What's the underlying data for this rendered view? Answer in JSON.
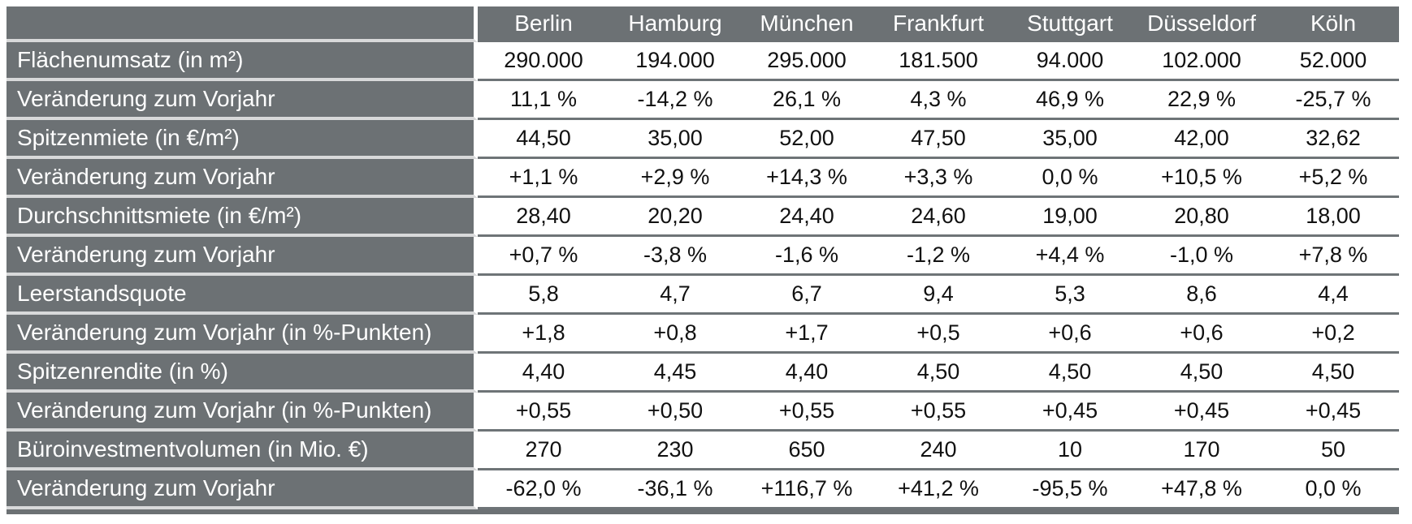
{
  "colors": {
    "table_gray": "#6C7174",
    "separator_light": "#D8D9DA",
    "separator_gray": "#6E7477",
    "data_text": "#111111",
    "header_text": "#FFFFFF"
  },
  "chart_data": {
    "type": "table",
    "corner_label": "",
    "columns": [
      "Berlin",
      "Hamburg",
      "München",
      "Frankfurt",
      "Stuttgart",
      "Düsseldorf",
      "Köln"
    ],
    "rows": [
      {
        "label": "Flächenumsatz (in m²)",
        "values": [
          "290.000",
          "194.000",
          "295.000",
          "181.500",
          "94.000",
          "102.000",
          "52.000"
        ]
      },
      {
        "label": "Veränderung zum Vorjahr",
        "values": [
          "11,1 %",
          "-14,2 %",
          "26,1 %",
          "4,3 %",
          "46,9 %",
          "22,9 %",
          "-25,7 %"
        ]
      },
      {
        "label": "Spitzenmiete (in €/m²)",
        "values": [
          "44,50",
          "35,00",
          "52,00",
          "47,50",
          "35,00",
          "42,00",
          "32,62"
        ]
      },
      {
        "label": "Veränderung zum Vorjahr",
        "values": [
          "+1,1 %",
          "+2,9 %",
          "+14,3 %",
          "+3,3 %",
          "0,0 %",
          "+10,5 %",
          "+5,2 %"
        ]
      },
      {
        "label": "Durchschnittsmiete (in €/m²)",
        "values": [
          "28,40",
          "20,20",
          "24,40",
          "24,60",
          "19,00",
          "20,80",
          "18,00"
        ]
      },
      {
        "label": "Veränderung zum Vorjahr",
        "values": [
          "+0,7 %",
          "-3,8 %",
          "-1,6 %",
          "-1,2 %",
          "+4,4 %",
          "-1,0 %",
          "+7,8 %"
        ]
      },
      {
        "label": "Leerstandsquote",
        "values": [
          "5,8",
          "4,7",
          "6,7",
          "9,4",
          "5,3",
          "8,6",
          "4,4"
        ]
      },
      {
        "label": "Veränderung zum Vorjahr (in %-Punkten)",
        "values": [
          "+1,8",
          "+0,8",
          "+1,7",
          "+0,5",
          "+0,6",
          "+0,6",
          "+0,2"
        ]
      },
      {
        "label": "Spitzenrendite (in %)",
        "values": [
          "4,40",
          "4,45",
          "4,40",
          "4,50",
          "4,50",
          "4,50",
          "4,50"
        ]
      },
      {
        "label": "Veränderung zum Vorjahr (in %-Punkten)",
        "values": [
          "+0,55",
          "+0,50",
          "+0,55",
          "+0,55",
          "+0,45",
          "+0,45",
          "+0,45"
        ]
      },
      {
        "label": "Büroinvestmentvolumen (in Mio. €)",
        "values": [
          "270",
          "230",
          "650",
          "240",
          "10",
          "170",
          "50"
        ]
      },
      {
        "label": "Veränderung zum Vorjahr",
        "values": [
          "-62,0 %",
          "-36,1 %",
          "+116,7 %",
          "+41,2 %",
          "-95,5 %",
          "+47,8 %",
          "0,0 %"
        ]
      }
    ]
  }
}
